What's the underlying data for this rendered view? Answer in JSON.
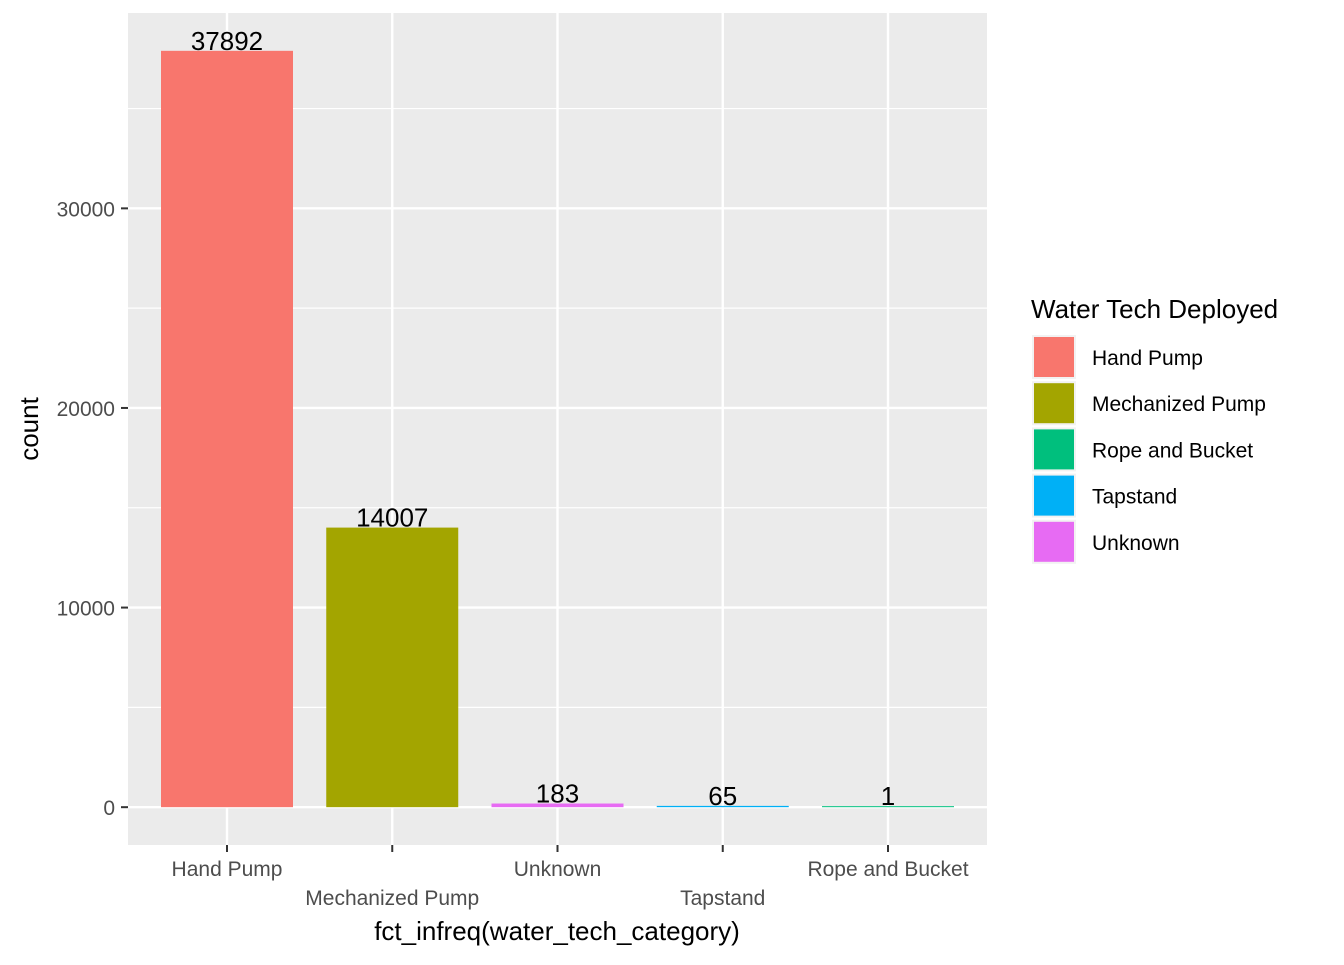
{
  "chart_data": {
    "type": "bar",
    "xlabel": "fct_infreq(water_tech_category)",
    "ylabel": "count",
    "categories": [
      "Hand Pump",
      "Mechanized Pump",
      "Unknown",
      "Tapstand",
      "Rope and Bucket"
    ],
    "values": [
      37892,
      14007,
      183,
      65,
      1
    ],
    "data_labels": [
      "37892",
      "14007",
      "183",
      "65",
      "1"
    ],
    "ylim": [
      -1895,
      39787
    ],
    "yticks": [
      0,
      10000,
      20000,
      30000
    ],
    "ytick_labels": [
      "0",
      "10000",
      "20000",
      "30000"
    ],
    "x_tick_labels_staggered": true,
    "grid": true,
    "panel_background": "#EBEBEB",
    "grid_color": "#FFFFFF",
    "bar_colors": {
      "Hand Pump": "#F8766D",
      "Mechanized Pump": "#A3A500",
      "Unknown": "#E76BF3",
      "Tapstand": "#00B0F6",
      "Rope and Bucket": "#00BF7D"
    },
    "legend": {
      "title": "Water Tech Deployed",
      "placement": "right",
      "entries": [
        {
          "label": "Hand Pump",
          "color": "#F8766D"
        },
        {
          "label": "Mechanized Pump",
          "color": "#A3A500"
        },
        {
          "label": "Rope and Bucket",
          "color": "#00BF7D"
        },
        {
          "label": "Tapstand",
          "color": "#00B0F6"
        },
        {
          "label": "Unknown",
          "color": "#E76BF3"
        }
      ]
    }
  }
}
